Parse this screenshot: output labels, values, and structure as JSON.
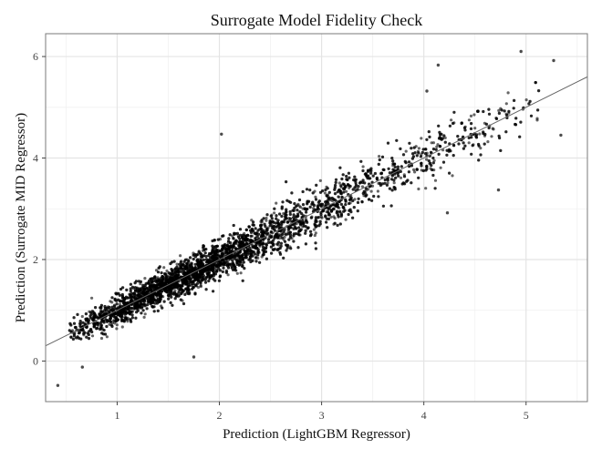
{
  "chart_data": {
    "type": "scatter",
    "title": "Surrogate Model Fidelity Check",
    "xlabel": "Prediction (LightGBM Regressor)",
    "ylabel": "Prediction (Surrogate MID Regressor)",
    "xlim": [
      0.3,
      5.6
    ],
    "ylim": [
      -0.8,
      6.45
    ],
    "xticks": [
      1,
      2,
      3,
      4,
      5
    ],
    "yticks": [
      0,
      2,
      4,
      6
    ],
    "grid": true,
    "legend": "none",
    "point_color": "#000000",
    "reference_line": {
      "slope": 1,
      "intercept": 0,
      "color": "#666666"
    },
    "bulk_trend": {
      "x_range": [
        0.52,
        5.15
      ],
      "slope": 1.0,
      "intercept": 0.0,
      "approx_n_points": 4800,
      "note_spread": "residual spread ~0.15 at low x rising to ~0.30 at high x"
    },
    "outliers": [
      {
        "x": 0.42,
        "y": -0.48
      },
      {
        "x": 1.75,
        "y": 0.08
      },
      {
        "x": 2.02,
        "y": 4.47
      },
      {
        "x": 4.03,
        "y": 5.32
      },
      {
        "x": 4.14,
        "y": 5.83
      },
      {
        "x": 4.95,
        "y": 6.1
      },
      {
        "x": 5.27,
        "y": 5.92
      },
      {
        "x": 5.34,
        "y": 4.45
      },
      {
        "x": 4.73,
        "y": 3.37
      },
      {
        "x": 4.23,
        "y": 2.92
      },
      {
        "x": 0.66,
        "y": -0.12
      }
    ]
  }
}
